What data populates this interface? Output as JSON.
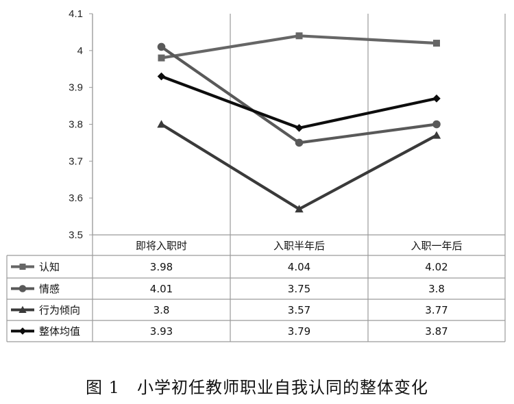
{
  "caption": "图 1　小学初任教师职业自我认同的整体变化",
  "chart_data": {
    "type": "line",
    "title": "",
    "xlabel": "",
    "ylabel": "",
    "categories": [
      "即将入职时",
      "入职半年后",
      "入职一年后"
    ],
    "ylim": [
      3.5,
      4.1
    ],
    "yticks": [
      "3.5",
      "3.6",
      "3.7",
      "3.8",
      "3.9",
      "4",
      "4.1"
    ],
    "grid": false,
    "legend": "data-table",
    "series": [
      {
        "name": "认知",
        "marker": "square",
        "color": "#666666",
        "values": [
          3.98,
          4.04,
          4.02
        ],
        "labels": [
          "3.98",
          "4.04",
          "4.02"
        ]
      },
      {
        "name": "情感",
        "marker": "circle",
        "color": "#595959",
        "values": [
          4.01,
          3.75,
          3.8
        ],
        "labels": [
          "4.01",
          "3.75",
          "3.8"
        ]
      },
      {
        "name": "行为倾向",
        "marker": "triangle",
        "color": "#3a3a3a",
        "values": [
          3.8,
          3.57,
          3.77
        ],
        "labels": [
          "3.8",
          "3.57",
          "3.77"
        ]
      },
      {
        "name": "整体均值",
        "marker": "diamond",
        "color": "#0d0d0d",
        "values": [
          3.93,
          3.79,
          3.87
        ],
        "labels": [
          "3.93",
          "3.79",
          "3.87"
        ]
      }
    ]
  }
}
